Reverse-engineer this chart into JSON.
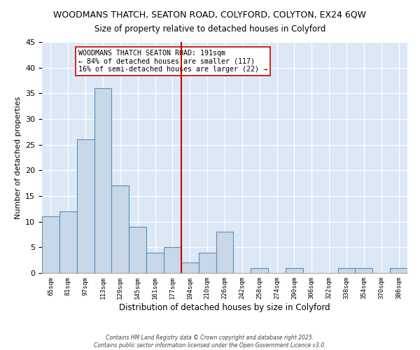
{
  "title": "WOODMANS THATCH, SEATON ROAD, COLYFORD, COLYTON, EX24 6QW",
  "subtitle": "Size of property relative to detached houses in Colyford",
  "xlabel": "Distribution of detached houses by size in Colyford",
  "ylabel": "Number of detached properties",
  "bin_labels": [
    "65sqm",
    "81sqm",
    "97sqm",
    "113sqm",
    "129sqm",
    "145sqm",
    "161sqm",
    "177sqm",
    "194sqm",
    "210sqm",
    "226sqm",
    "242sqm",
    "258sqm",
    "274sqm",
    "290sqm",
    "306sqm",
    "322sqm",
    "338sqm",
    "354sqm",
    "370sqm",
    "386sqm"
  ],
  "bar_values": [
    11,
    12,
    26,
    36,
    17,
    9,
    4,
    5,
    2,
    4,
    8,
    0,
    1,
    0,
    1,
    0,
    0,
    1,
    1,
    0,
    1
  ],
  "bar_color": "#c8d8e8",
  "bar_edge_color": "#5b8db8",
  "vline_color": "#cc0000",
  "vline_position": 7.5,
  "annotation_text": "WOODMANS THATCH SEATON ROAD: 191sqm\n← 84% of detached houses are smaller (117)\n16% of semi-detached houses are larger (22) →",
  "ylim": [
    0,
    45
  ],
  "background_color": "#dce8f5",
  "footer_line1": "Contains HM Land Registry data © Crown copyright and database right 2025.",
  "footer_line2": "Contains public sector information licensed under the Open Government Licence v3.0."
}
